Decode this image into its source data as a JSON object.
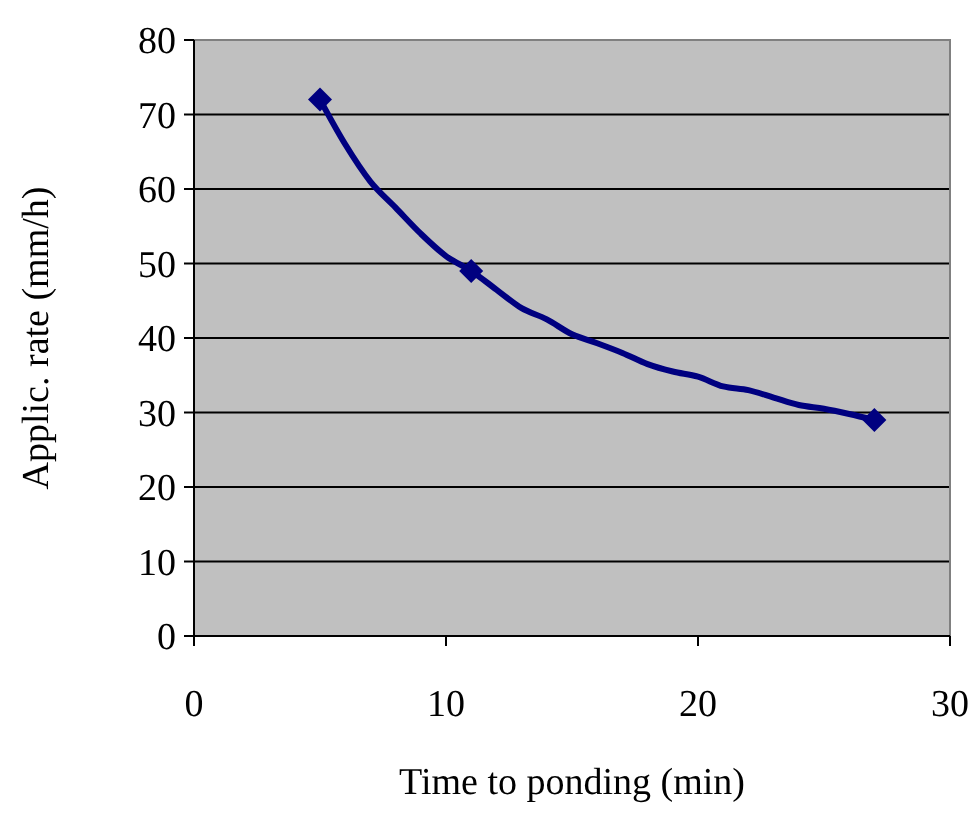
{
  "chart_data": {
    "type": "line",
    "xlabel": "Time to ponding (min)",
    "ylabel": "Applic. rate (mm/h)",
    "xlim": [
      0,
      30
    ],
    "xticks": [
      0,
      10,
      20,
      30
    ],
    "ylim": [
      0,
      80
    ],
    "yticks": [
      0,
      10,
      20,
      30,
      40,
      50,
      60,
      70,
      80
    ],
    "grid": "y",
    "series": [
      {
        "color": "#000080",
        "marker": "none",
        "x": [
          5,
          6,
          7,
          8,
          9,
          10,
          11,
          12,
          13,
          14,
          15,
          16,
          17,
          18,
          19,
          20,
          21,
          22,
          23,
          24,
          25,
          26,
          27
        ],
        "values": [
          72,
          66,
          61,
          57.5,
          54,
          51,
          49,
          46.5,
          44,
          42.5,
          40.5,
          39.3,
          38,
          36.5,
          35.5,
          34.8,
          33.5,
          33,
          32,
          31,
          30.5,
          29.8,
          29
        ]
      },
      {
        "type": "scatter",
        "color": "#000080",
        "marker": "diamond",
        "x": [
          5,
          11,
          27
        ],
        "values": [
          72,
          49,
          29
        ]
      }
    ]
  }
}
